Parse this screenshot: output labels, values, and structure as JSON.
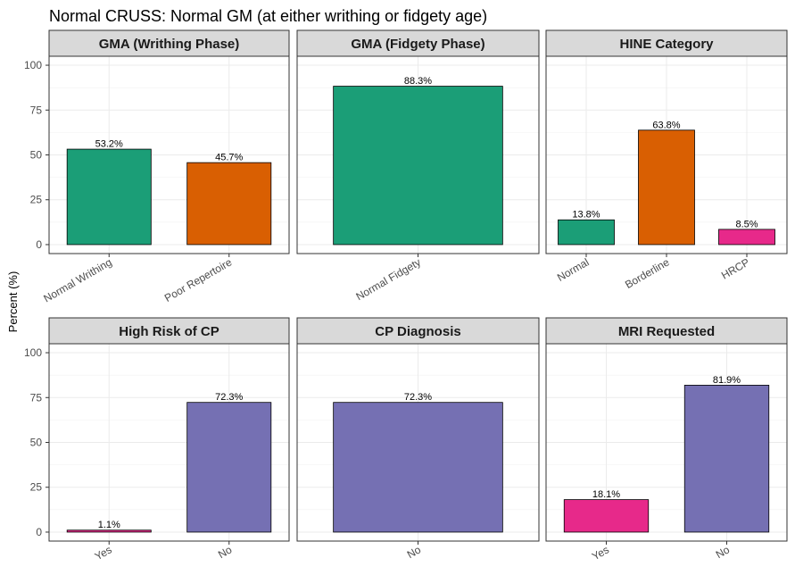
{
  "chart_data": {
    "type": "bar",
    "title": "Normal CRUSS: Normal GM (at either writhing or fidgety age)",
    "ylabel": "Percent (%)",
    "xlabel": "",
    "ylim": [
      0,
      105
    ],
    "yticks": [
      0,
      25,
      50,
      75,
      100
    ],
    "grid": true,
    "legend": "none",
    "colors": {
      "green": "#1b9e77",
      "orange": "#d95f02",
      "purple": "#7570b3",
      "pink": "#e7298a"
    },
    "panels": [
      {
        "title": "GMA (Writhing Phase)",
        "categories": [
          "Normal Writhing",
          "Poor Repertoire"
        ],
        "values": [
          53.2,
          45.7
        ],
        "labels": [
          "53.2%",
          "45.7%"
        ],
        "colors": [
          "#1b9e77",
          "#d95f02"
        ]
      },
      {
        "title": "GMA (Fidgety Phase)",
        "categories": [
          "Normal Fidgety"
        ],
        "values": [
          88.3
        ],
        "labels": [
          "88.3%"
        ],
        "colors": [
          "#1b9e77"
        ]
      },
      {
        "title": "HINE Category",
        "categories": [
          "Normal",
          "Borderline",
          "HRCP"
        ],
        "values": [
          13.8,
          63.8,
          8.5
        ],
        "labels": [
          "13.8%",
          "63.8%",
          "8.5%"
        ],
        "colors": [
          "#1b9e77",
          "#d95f02",
          "#e7298a"
        ]
      },
      {
        "title": "High Risk of CP",
        "categories": [
          "Yes",
          "No"
        ],
        "values": [
          1.1,
          72.3
        ],
        "labels": [
          "1.1%",
          "72.3%"
        ],
        "colors": [
          "#e7298a",
          "#7570b3"
        ]
      },
      {
        "title": "CP Diagnosis",
        "categories": [
          "No"
        ],
        "values": [
          72.3
        ],
        "labels": [
          "72.3%"
        ],
        "colors": [
          "#7570b3"
        ]
      },
      {
        "title": "MRI Requested",
        "categories": [
          "Yes",
          "No"
        ],
        "values": [
          18.1,
          81.9
        ],
        "labels": [
          "18.1%",
          "81.9%"
        ],
        "colors": [
          "#e7298a",
          "#7570b3"
        ]
      }
    ]
  }
}
